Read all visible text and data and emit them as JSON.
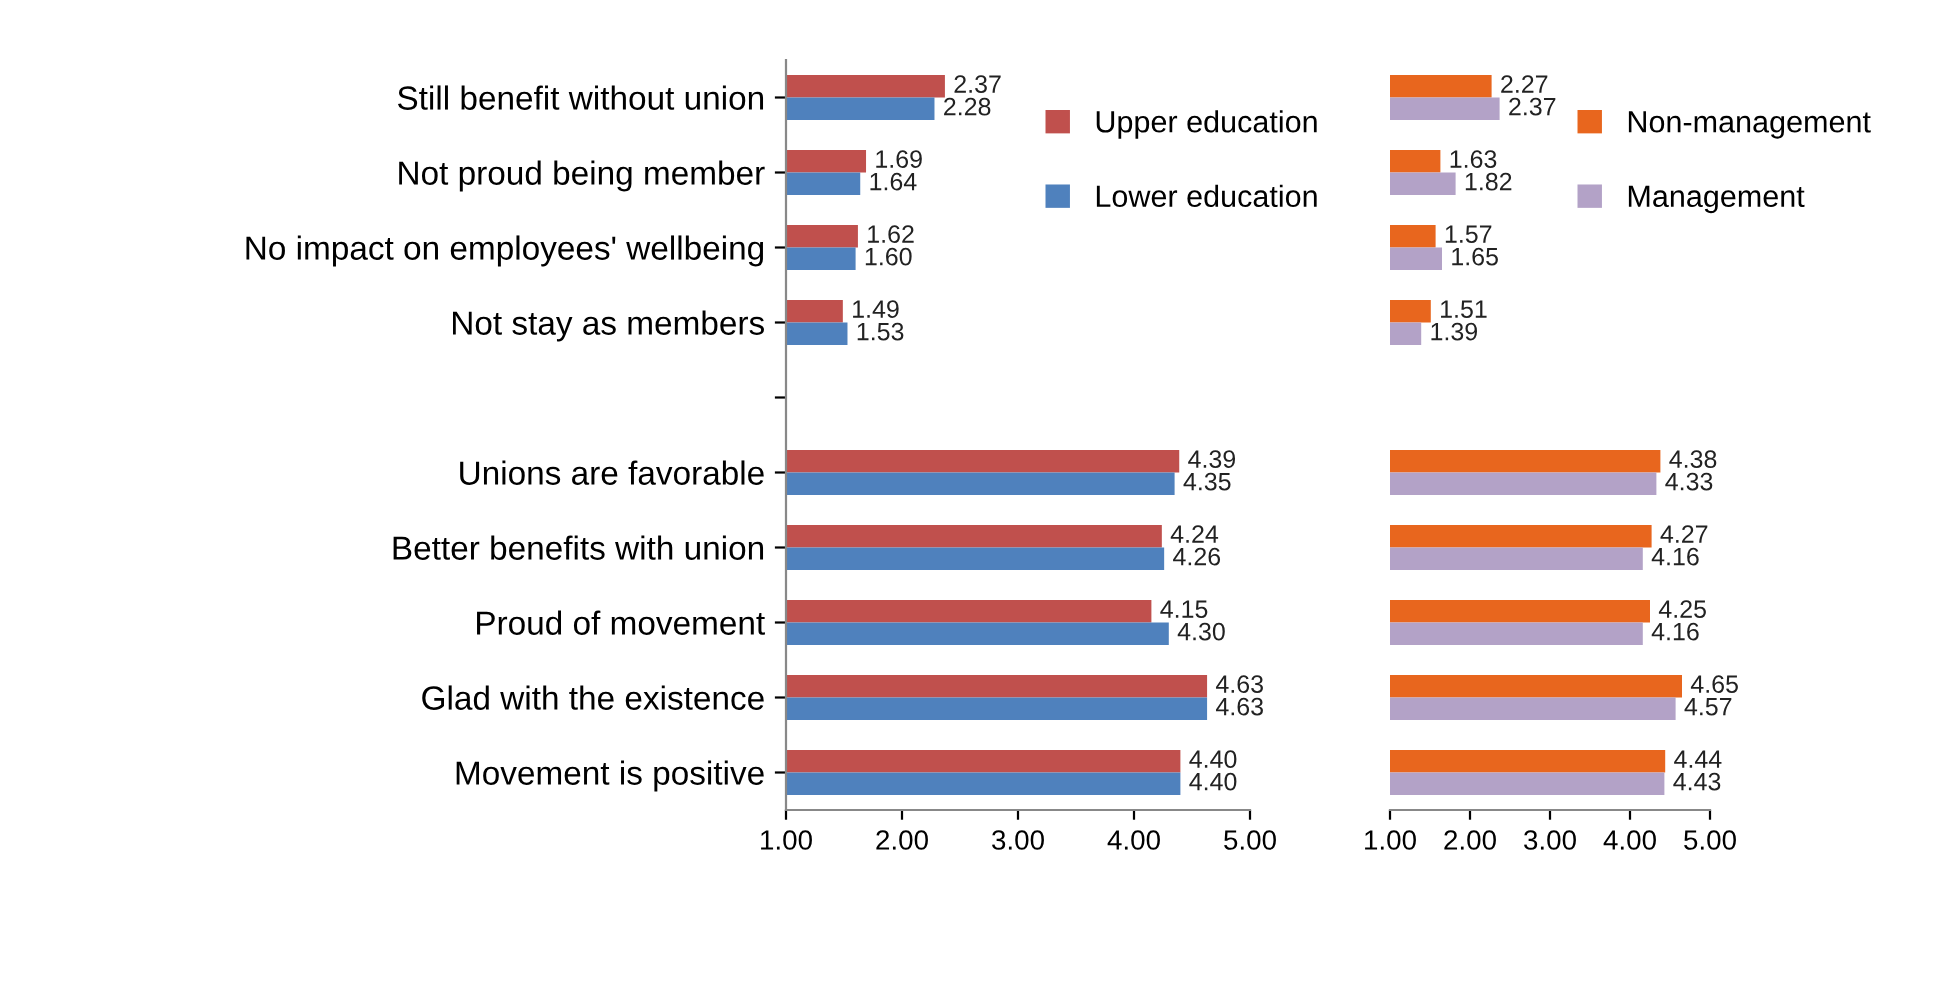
{
  "chart_data": [
    {
      "type": "bar",
      "orientation": "horizontal",
      "categories": [
        "Still benefit without union",
        "Not proud being member",
        "No impact on employees' wellbeing",
        "Not stay as members",
        null,
        "Unions are favorable",
        "Better benefits with union",
        "Proud of movement",
        "Glad with the existence",
        "Movement is positive"
      ],
      "series": [
        {
          "name": "Upper education",
          "color": "#c0504d",
          "values": [
            2.37,
            1.69,
            1.62,
            1.49,
            null,
            4.39,
            4.24,
            4.15,
            4.63,
            4.4
          ],
          "value_labels": [
            "2.37",
            "1.69",
            "1.62",
            "1.49",
            null,
            "4.39",
            "4.24",
            "4.15",
            "4.63",
            "4.40"
          ]
        },
        {
          "name": "Lower education",
          "color": "#4f81bd",
          "values": [
            2.28,
            1.64,
            1.6,
            1.53,
            null,
            4.35,
            4.26,
            4.3,
            4.63,
            4.4
          ],
          "value_labels": [
            "2.28",
            "1.64",
            "1.60",
            "1.53",
            null,
            "4.35",
            "4.26",
            "4.30",
            "4.63",
            "4.40"
          ]
        }
      ],
      "xlim": [
        1,
        5
      ],
      "xticks": [
        {
          "value": 1,
          "label": "1.00"
        },
        {
          "value": 2,
          "label": "2.00"
        },
        {
          "value": 3,
          "label": "3.00"
        },
        {
          "value": 4,
          "label": "4.00"
        },
        {
          "value": 5,
          "label": "5.00"
        }
      ],
      "grid": false,
      "legend": "top right"
    },
    {
      "type": "bar",
      "orientation": "horizontal",
      "categories": [
        null,
        null,
        null,
        null,
        null,
        null,
        null,
        null,
        null,
        null
      ],
      "series": [
        {
          "name": "Non-management",
          "color": "#e8661e",
          "values": [
            2.27,
            1.63,
            1.57,
            1.51,
            null,
            4.38,
            4.27,
            4.25,
            4.65,
            4.44
          ],
          "value_labels": [
            "2.27",
            "1.63",
            "1.57",
            "1.51",
            null,
            "4.38",
            "4.27",
            "4.25",
            "4.65",
            "4.44"
          ]
        },
        {
          "name": "Management",
          "color": "#b3a2c7",
          "values": [
            2.37,
            1.82,
            1.65,
            1.39,
            null,
            4.33,
            4.16,
            4.16,
            4.57,
            4.43
          ],
          "value_labels": [
            "2.37",
            "1.82",
            "1.65",
            "1.39",
            null,
            "4.33",
            "4.16",
            "4.16",
            "4.57",
            "4.43"
          ]
        }
      ],
      "xlim": [
        1,
        5
      ],
      "xticks": [
        {
          "value": 1,
          "label": "1.00"
        },
        {
          "value": 2,
          "label": "2.00"
        },
        {
          "value": 3,
          "label": "3.00"
        },
        {
          "value": 4,
          "label": "4.00"
        },
        {
          "value": 5,
          "label": "5.00"
        }
      ],
      "grid": false,
      "legend": "top right",
      "tick_labels": "x"
    }
  ]
}
